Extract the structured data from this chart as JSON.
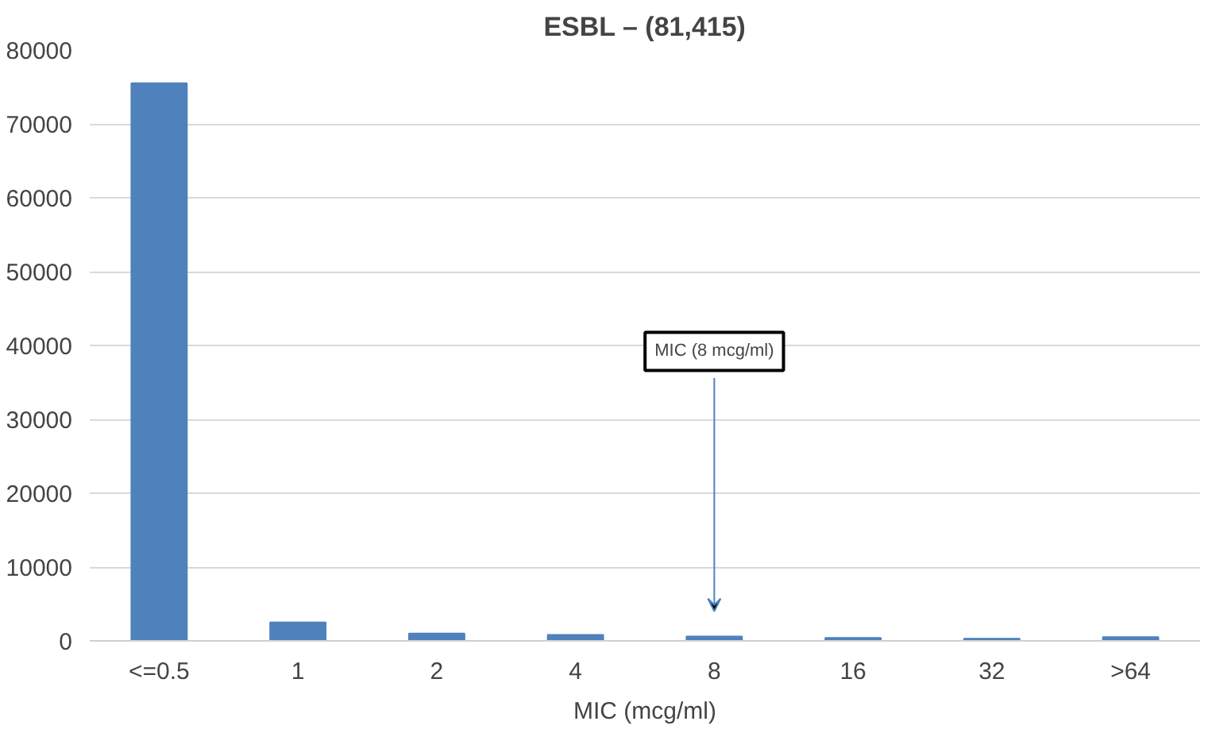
{
  "chart_data": {
    "type": "bar",
    "title": "ESBL – (81,415)",
    "xlabel": "MIC (mcg/ml)",
    "categories": [
      "<=0.5",
      "1",
      "2",
      "4",
      "8",
      "16",
      "32",
      ">64"
    ],
    "values": [
      75500,
      2500,
      1000,
      800,
      600,
      400,
      300,
      500
    ],
    "color": "#4f81bd",
    "ylim": [
      0,
      80000
    ],
    "yticks": [
      0,
      10000,
      20000,
      30000,
      40000,
      50000,
      60000,
      70000,
      80000
    ],
    "grid": "y",
    "annotations": [
      "MIC (8 mcg/ml)"
    ]
  }
}
